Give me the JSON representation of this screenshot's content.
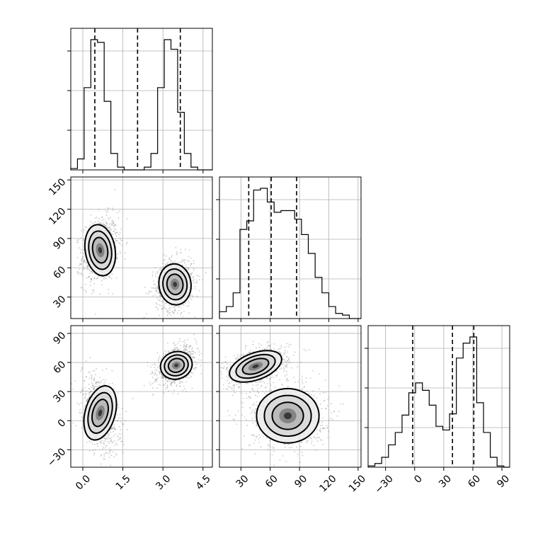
{
  "chart_data": {
    "type": "corner",
    "parameters": [
      {
        "ticks": [
          "0.0",
          "1.5",
          "3.0",
          "4.5"
        ],
        "tick_values": [
          0.0,
          1.5,
          3.0,
          4.5
        ],
        "range": [
          -0.45,
          4.85
        ]
      },
      {
        "ticks": [
          "30",
          "60",
          "90",
          "120",
          "150"
        ],
        "tick_values": [
          30,
          60,
          90,
          120,
          150
        ],
        "range": [
          8,
          153
        ]
      },
      {
        "ticks": [
          "−30",
          "0",
          "30",
          "60",
          "90"
        ],
        "tick_values": [
          -30,
          0,
          30,
          60,
          90
        ],
        "range": [
          -48,
          98
        ]
      }
    ],
    "histograms": [
      {
        "bins": [
          -0.45,
          -0.2,
          0.05,
          0.3,
          0.55,
          0.8,
          1.05,
          1.3,
          1.55,
          1.8,
          2.05,
          2.3,
          2.55,
          2.8,
          3.05,
          3.3,
          3.55,
          3.8,
          4.05,
          4.3,
          4.55,
          4.85
        ],
        "counts": [
          1,
          8,
          60,
          95,
          93,
          50,
          12,
          2,
          0,
          0,
          0,
          2,
          12,
          60,
          95,
          88,
          42,
          12,
          2,
          0,
          0
        ],
        "quantiles": [
          0.45,
          2.05,
          3.65
        ]
      },
      {
        "bins": [
          8,
          15,
          22,
          29,
          36,
          43,
          50,
          57,
          64,
          71,
          78,
          85,
          92,
          99,
          106,
          113,
          120,
          127,
          134,
          141,
          148,
          153
        ],
        "counts": [
          4,
          7,
          15,
          52,
          57,
          75,
          76,
          68,
          62,
          63,
          63,
          58,
          49,
          38,
          24,
          15,
          7,
          3,
          2,
          0,
          0
        ],
        "quantiles": [
          38,
          61,
          87
        ]
      },
      {
        "bins": [
          -48,
          -41,
          -34,
          -27,
          -20,
          -13,
          -6,
          1,
          8,
          15,
          22,
          29,
          36,
          43,
          50,
          57,
          64,
          71,
          78,
          85,
          92,
          98
        ],
        "counts": [
          1,
          3,
          8,
          18,
          28,
          42,
          60,
          68,
          62,
          50,
          33,
          30,
          43,
          88,
          100,
          105,
          52,
          28,
          8,
          1,
          0
        ],
        "quantiles": [
          -2,
          39,
          61
        ]
      }
    ],
    "modes_2d": [
      {
        "pair": [
          0,
          1
        ],
        "modes": [
          {
            "x": 0.65,
            "y": 78,
            "sx": 0.28,
            "sy": 14,
            "rho": 0.2
          },
          {
            "x": 3.45,
            "y": 43,
            "sx": 0.3,
            "sy": 11,
            "rho": 0.15
          }
        ]
      },
      {
        "pair": [
          0,
          2
        ],
        "modes": [
          {
            "x": 0.65,
            "y": 8,
            "sx": 0.28,
            "sy": 16,
            "rho": -0.35
          },
          {
            "x": 3.5,
            "y": 57,
            "sx": 0.3,
            "sy": 8,
            "rho": 0.4
          }
        ]
      },
      {
        "pair": [
          1,
          2
        ],
        "modes": [
          {
            "x": 45,
            "y": 56,
            "sx": 14,
            "sy": 8,
            "rho": 0.45
          },
          {
            "x": 78,
            "y": 5,
            "sx": 16,
            "sy": 14,
            "rho": 0.0
          }
        ]
      }
    ]
  }
}
